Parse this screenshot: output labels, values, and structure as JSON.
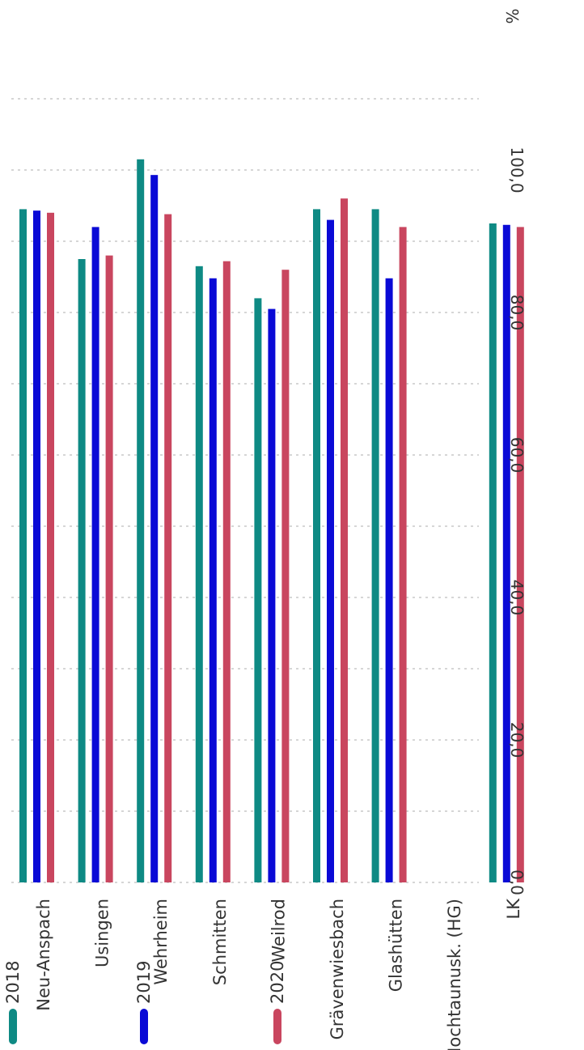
{
  "chart_data": {
    "type": "bar",
    "orientation": "horizontal",
    "unit": "%",
    "categories": [
      "Neu-Anspach",
      "Usingen",
      "Wehrheim",
      "Schmitten",
      "Weilrod",
      "Grävenwiesbach",
      "Glashütten",
      "Hochtaunusk. (HG)",
      "LK"
    ],
    "series": [
      {
        "name": "2018",
        "color": "#0e8a84",
        "values": [
          94.5,
          87.5,
          101.5,
          86.5,
          82.0,
          94.5,
          94.5,
          0,
          92.5
        ]
      },
      {
        "name": "2019",
        "color": "#0a0ad6",
        "values": [
          94.3,
          92.0,
          99.3,
          84.8,
          80.5,
          93.0,
          84.8,
          0,
          92.3
        ]
      },
      {
        "name": "2020",
        "color": "#c9465f",
        "values": [
          94.0,
          88.0,
          93.8,
          87.2,
          86.0,
          96.0,
          92.0,
          0,
          92.0
        ]
      }
    ],
    "xticks": [
      "0,0",
      "20,0",
      "40,0",
      "60,0",
      "80,0",
      "100,0"
    ],
    "xlim": [
      0,
      110
    ],
    "grid": true,
    "legend": "bottom"
  }
}
